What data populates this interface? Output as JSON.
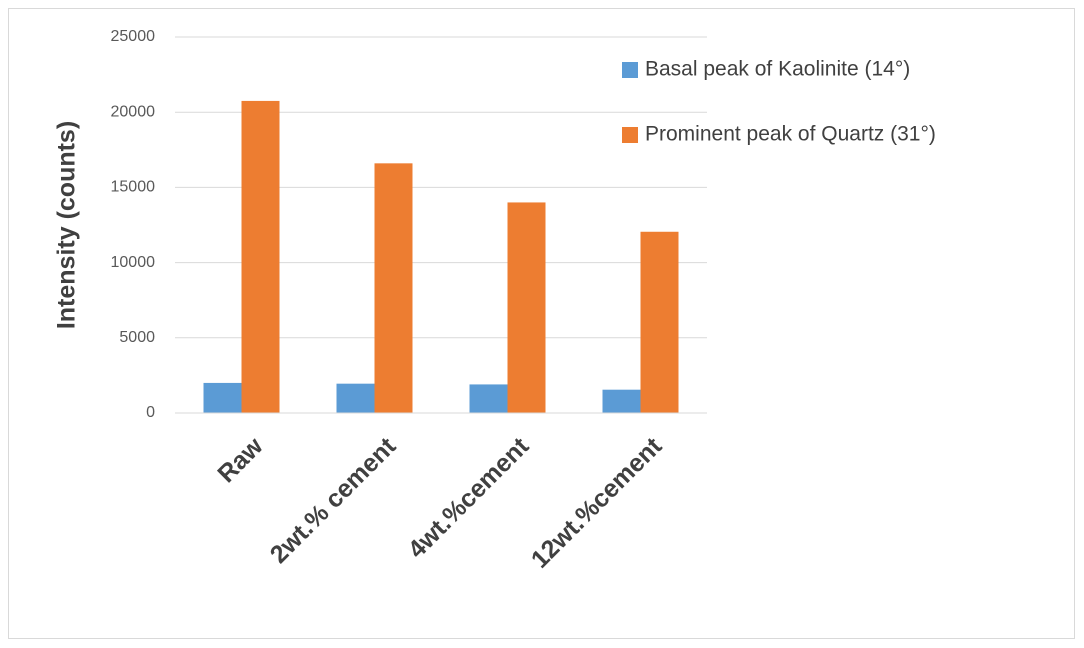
{
  "chart_data": {
    "type": "bar",
    "y_label": "Intensity (counts)",
    "categories": [
      "Raw",
      "2wt.% cement",
      "4wt.%cement",
      "12wt.%cement"
    ],
    "series": [
      {
        "name": "Basal peak of Kaolinite (14°)",
        "color": "#5b9bd5",
        "values": [
          2000,
          1950,
          1900,
          1550
        ]
      },
      {
        "name": "Prominent peak of Quartz (31°)",
        "color": "#ed7d31",
        "values": [
          20750,
          16600,
          14000,
          12050
        ]
      }
    ],
    "ylim": [
      0,
      25000
    ],
    "yticks": [
      0,
      5000,
      10000,
      15000,
      20000,
      25000
    ],
    "grid": true,
    "legend": "upper right"
  }
}
